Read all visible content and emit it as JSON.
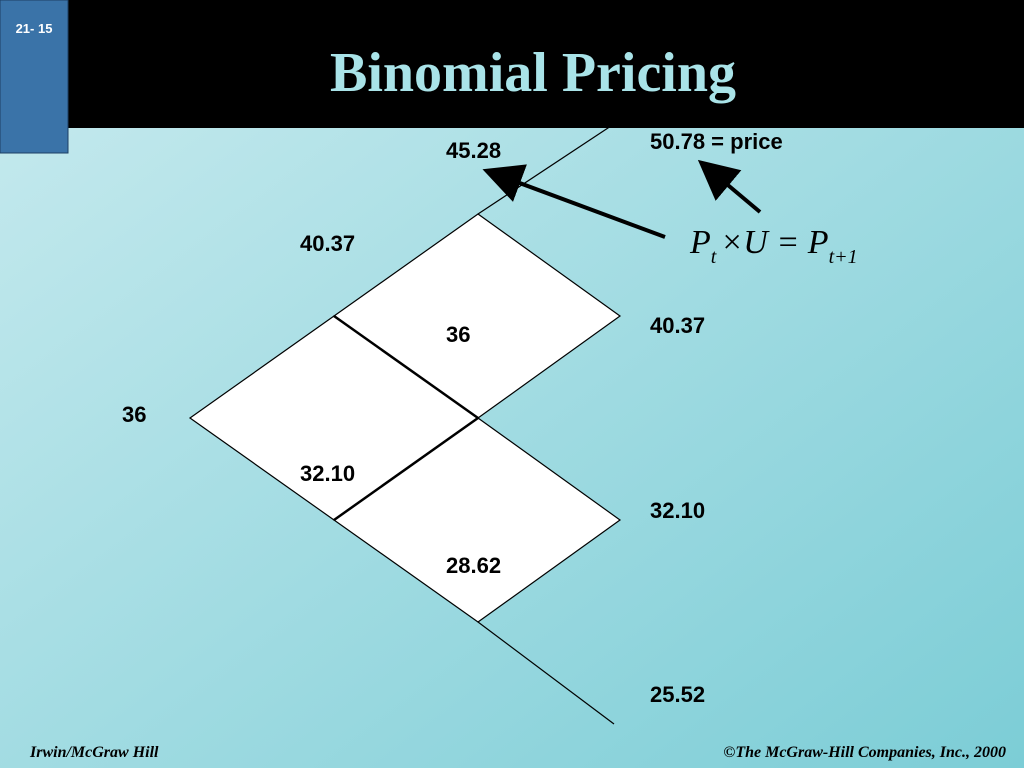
{
  "slide_number": "21- 15",
  "title": "Binomial Pricing",
  "nodes": [
    {
      "label": "36"
    },
    {
      "label": "40.37"
    },
    {
      "label": "32.10"
    },
    {
      "label": "45.28"
    },
    {
      "label": "36"
    },
    {
      "label": "28.62"
    },
    {
      "label": "50.78 = price"
    },
    {
      "label": "40.37"
    },
    {
      "label": "32.10"
    },
    {
      "label": "25.52"
    }
  ],
  "formula": {
    "base": "P",
    "sub1": "t",
    "middle": "×U = P",
    "sub2": "t+1"
  },
  "footer": {
    "left": "Irwin/McGraw Hill",
    "right": "©The McGraw-Hill Companies, Inc., 2000"
  }
}
